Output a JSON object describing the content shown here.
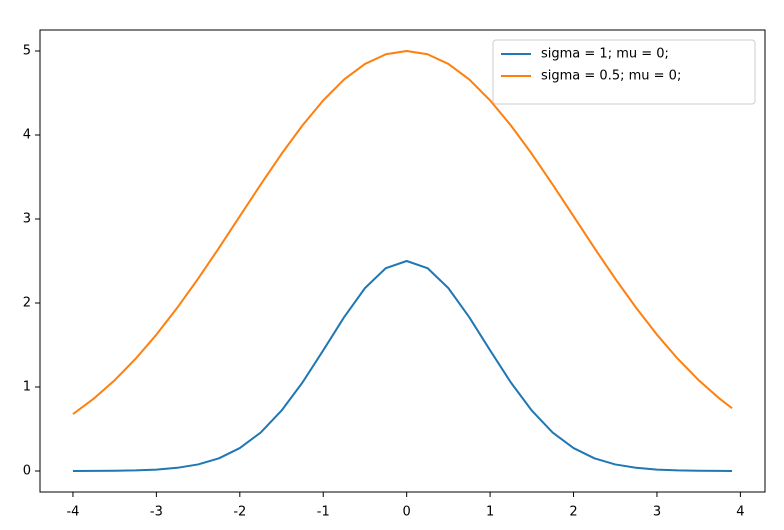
{
  "chart_data": {
    "type": "line",
    "x": [
      -4,
      -3.75,
      -3.5,
      -3.25,
      -3,
      -2.75,
      -2.5,
      -2.25,
      -2,
      -1.75,
      -1.5,
      -1.25,
      -1,
      -0.75,
      -0.5,
      -0.25,
      0,
      0.25,
      0.5,
      0.75,
      1,
      1.25,
      1.5,
      1.75,
      2,
      2.25,
      2.5,
      2.75,
      3,
      3.25,
      3.5,
      3.75,
      3.9
    ],
    "series": [
      {
        "name": "sigma = 1; mu = 0;",
        "color": "#1f77b4",
        "values": [
          0,
          0.001,
          0.003,
          0.007,
          0.017,
          0.038,
          0.078,
          0.151,
          0.273,
          0.458,
          0.719,
          1.052,
          1.437,
          1.831,
          2.177,
          2.415,
          2.5,
          2.415,
          2.177,
          1.831,
          1.437,
          1.052,
          0.719,
          0.458,
          0.273,
          0.151,
          0.078,
          0.038,
          0.017,
          0.007,
          0.003,
          0.001,
          0
        ]
      },
      {
        "name": "sigma = 0.5; mu = 0;",
        "color": "#ff7f0e",
        "values": [
          0.677,
          0.862,
          1.081,
          1.335,
          1.623,
          1.943,
          2.289,
          2.655,
          3.033,
          3.41,
          3.775,
          4.113,
          4.412,
          4.661,
          4.846,
          4.961,
          5,
          4.961,
          4.846,
          4.661,
          4.412,
          4.113,
          3.775,
          3.41,
          3.033,
          2.655,
          2.289,
          1.943,
          1.623,
          1.335,
          1.081,
          0.862,
          0.747
        ]
      }
    ],
    "xlim": [
      -4.395,
      4.295
    ],
    "xticks": [
      -4,
      -3,
      -2,
      -1,
      0,
      1,
      2,
      3,
      4
    ],
    "ylim": [
      -0.25,
      5.25
    ],
    "yticks": [
      0,
      1,
      2,
      3,
      4,
      5
    ],
    "legend": "upper right"
  }
}
